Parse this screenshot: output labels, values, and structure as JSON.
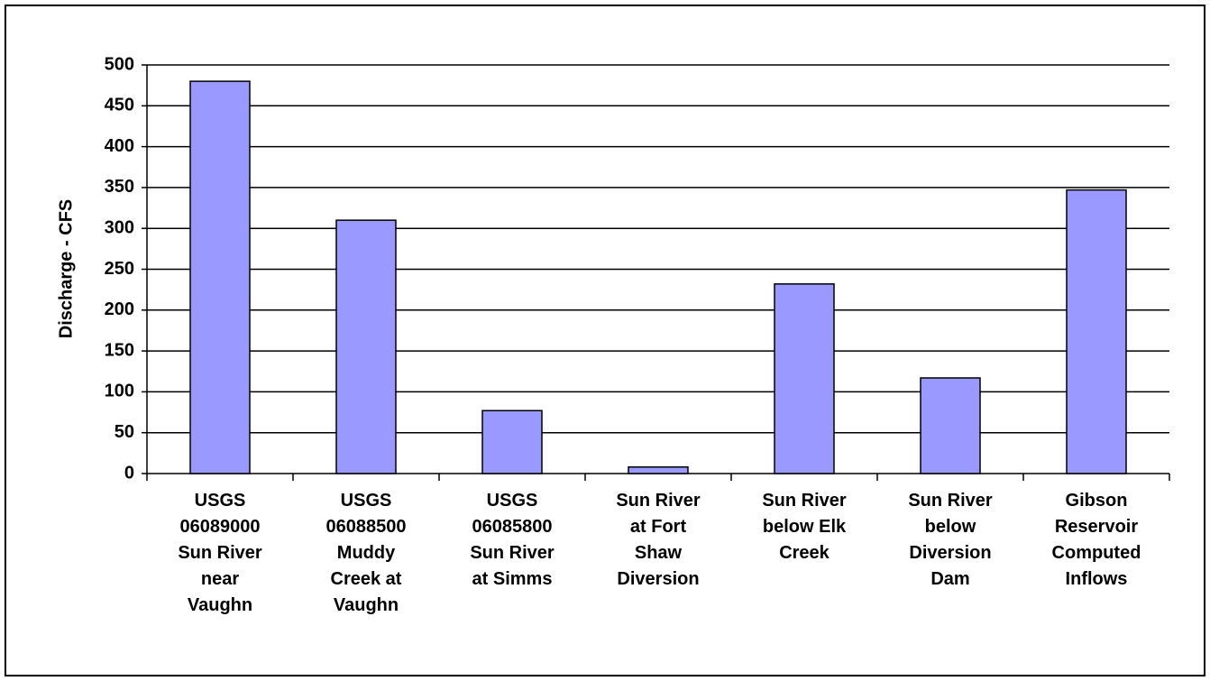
{
  "chart_data": {
    "type": "bar",
    "y_label": "Discharge - CFS",
    "categories": [
      "USGS\n06089000\nSun River\nnear\nVaughn",
      "USGS\n06088500\nMuddy\nCreek at\nVaughn",
      "USGS\n06085800\nSun River\nat Simms",
      "Sun River\nat Fort\nShaw\nDiversion",
      "Sun River\nbelow Elk\nCreek",
      "Sun River\nbelow\nDiversion\nDam",
      "Gibson\nReservoir\nComputed\nInflows"
    ],
    "values": [
      480,
      310,
      77,
      8,
      232,
      117,
      347
    ],
    "color": "#9999ff",
    "ylim": [
      0,
      500
    ],
    "yticks": [
      0,
      50,
      100,
      150,
      200,
      250,
      300,
      350,
      400,
      450,
      500
    ],
    "grid": true
  }
}
